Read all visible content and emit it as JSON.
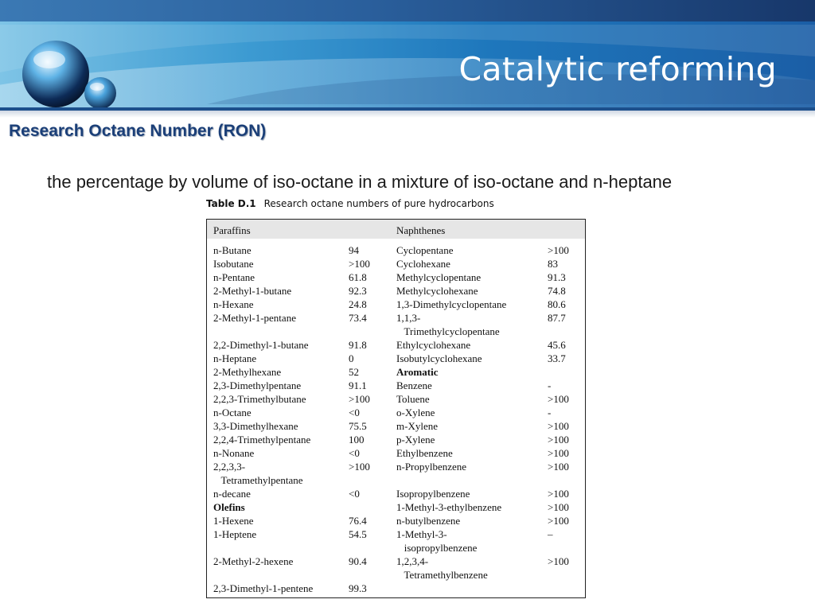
{
  "header": {
    "title": "Catalytic reforming",
    "colors": {
      "band_dark": "#17376a",
      "band_light": "#3d9bd2",
      "title_text": "#ffffff"
    }
  },
  "subtitle": "Research Octane Number (RON)",
  "definition": "the percentage by volume of iso-octane in a mixture of iso-octane and n-heptane",
  "table": {
    "caption_number": "Table D.1",
    "caption_text": "Research octane numbers of pure hydrocarbons",
    "columns": [
      "Paraffins",
      "Naphthenes"
    ],
    "rows": [
      {
        "a": "n-Butane",
        "av": "94",
        "b": "Cyclopentane",
        "bv": ">100"
      },
      {
        "a": "Isobutane",
        "av": ">100",
        "b": "Cyclohexane",
        "bv": "83"
      },
      {
        "a": "n-Pentane",
        "av": "61.8",
        "b": "Methylcyclopentane",
        "bv": "91.3"
      },
      {
        "a": "2-Methyl-1-butane",
        "av": "92.3",
        "b": "Methylcyclohexane",
        "bv": "74.8"
      },
      {
        "a": "n-Hexane",
        "av": "24.8",
        "b": "1,3-Dimethylcyclopentane",
        "bv": "80.6"
      },
      {
        "a": "2-Methyl-1-pentane",
        "av": "73.4",
        "b": "1,1,3-",
        "bv": "87.7"
      },
      {
        "a": "",
        "av": "",
        "b": "   Trimethylcyclopentane",
        "bv": ""
      },
      {
        "a": "2,2-Dimethyl-1-butane",
        "av": "91.8",
        "b": "Ethylcyclohexane",
        "bv": "45.6"
      },
      {
        "a": "n-Heptane",
        "av": "0",
        "b": "Isobutylcyclohexane",
        "bv": "33.7"
      },
      {
        "a": "2-Methylhexane",
        "av": "52",
        "b": "Aromatic",
        "bv": "",
        "b_bold": true
      },
      {
        "a": "2,3-Dimethylpentane",
        "av": "91.1",
        "b": "Benzene",
        "bv": "-"
      },
      {
        "a": "2,2,3-Trimethylbutane",
        "av": ">100",
        "b": "Toluene",
        "bv": ">100"
      },
      {
        "a": "n-Octane",
        "av": "<0",
        "b": "o-Xylene",
        "bv": "-"
      },
      {
        "a": "3,3-Dimethylhexane",
        "av": "75.5",
        "b": "m-Xylene",
        "bv": ">100"
      },
      {
        "a": "2,2,4-Trimethylpentane",
        "av": "100",
        "b": "p-Xylene",
        "bv": ">100"
      },
      {
        "a": "n-Nonane",
        "av": "<0",
        "b": "Ethylbenzene",
        "bv": ">100"
      },
      {
        "a": "2,2,3,3-",
        "av": ">100",
        "b": "n-Propylbenzene",
        "bv": ">100"
      },
      {
        "a": "   Tetramethylpentane",
        "av": "",
        "b": "",
        "bv": ""
      },
      {
        "a": "n-decane",
        "av": "<0",
        "b": "Isopropylbenzene",
        "bv": ">100"
      },
      {
        "a": "Olefins",
        "av": "",
        "b": "1-Methyl-3-ethylbenzene",
        "bv": ">100",
        "a_bold": true
      },
      {
        "a": "1-Hexene",
        "av": "76.4",
        "b": "n-butylbenzene",
        "bv": ">100"
      },
      {
        "a": "1-Heptene",
        "av": "54.5",
        "b": "1-Methyl-3-",
        "bv": "–"
      },
      {
        "a": "",
        "av": "",
        "b": "   isopropylbenzene",
        "bv": ""
      },
      {
        "a": "2-Methyl-2-hexene",
        "av": "90.4",
        "b": "1,2,3,4-",
        "bv": ">100"
      },
      {
        "a": "",
        "av": "",
        "b": "   Tetramethylbenzene",
        "bv": ""
      },
      {
        "a": "2,3-Dimethyl-1-pentene",
        "av": "99.3",
        "b": "",
        "bv": ""
      }
    ]
  }
}
